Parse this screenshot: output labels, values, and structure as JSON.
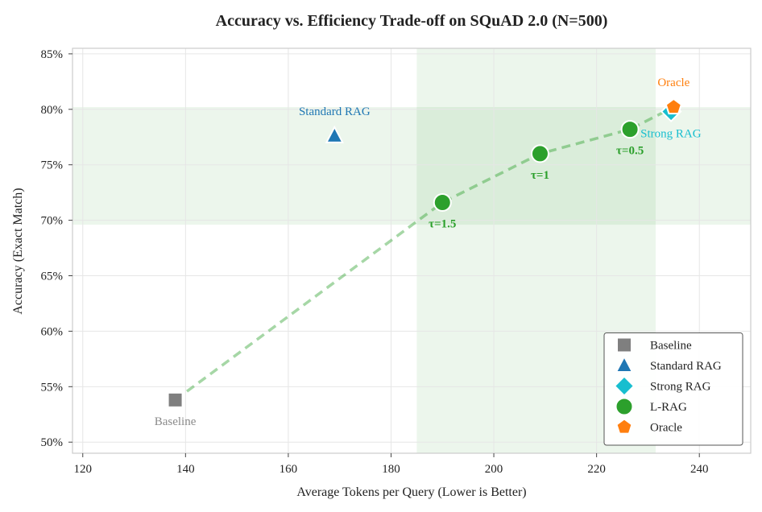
{
  "chart_data": {
    "type": "scatter",
    "title": "Accuracy vs. Efficiency Trade-off on SQuAD 2.0 (N=500)",
    "xlabel": "Average Tokens per Query (Lower is Better)",
    "ylabel": "Accuracy (Exact Match)",
    "xlim": [
      118,
      250
    ],
    "ylim": [
      49,
      85.5
    ],
    "xticks": [
      120,
      140,
      160,
      180,
      200,
      220,
      240
    ],
    "yticks": [
      50,
      55,
      60,
      65,
      70,
      75,
      80,
      85
    ],
    "ytick_suffix": "%",
    "grid": true,
    "shaded_regions": [
      {
        "axis": "x",
        "from": 185,
        "to": 231.5,
        "color": "#2ca02c"
      },
      {
        "axis": "y",
        "from": 69.6,
        "to": 80.2,
        "color": "#2ca02c"
      }
    ],
    "series": [
      {
        "name": "Baseline",
        "marker": "square",
        "color": "#7f7f7f",
        "points": [
          {
            "x": 138,
            "y": 53.8,
            "label": "Baseline",
            "label_pos": "below"
          }
        ]
      },
      {
        "name": "Standard RAG",
        "marker": "triangle",
        "color": "#1f77b4",
        "points": [
          {
            "x": 169,
            "y": 77.6,
            "label": "Standard RAG",
            "label_pos": "above"
          }
        ]
      },
      {
        "name": "Strong RAG",
        "marker": "diamond",
        "color": "#17becf",
        "points": [
          {
            "x": 234.5,
            "y": 79.8,
            "label": "Strong RAG",
            "label_pos": "below-right"
          }
        ]
      },
      {
        "name": "L-RAG",
        "marker": "circle",
        "color": "#2ca02c",
        "line": "dashed",
        "points": [
          {
            "x": 190,
            "y": 71.6,
            "label": "τ=1.5",
            "label_pos": "below"
          },
          {
            "x": 209,
            "y": 76.0,
            "label": "τ=1",
            "label_pos": "below"
          },
          {
            "x": 226.5,
            "y": 78.2,
            "label": "τ=0.5",
            "label_pos": "below"
          }
        ]
      },
      {
        "name": "Oracle",
        "marker": "pentagon",
        "color": "#ff7f0e",
        "points": [
          {
            "x": 235,
            "y": 80.2,
            "label": "Oracle",
            "label_pos": "above"
          }
        ]
      }
    ],
    "trend_line": {
      "color": "#2ca02c",
      "points": [
        {
          "x": 138,
          "y": 53.8
        },
        {
          "x": 190,
          "y": 71.6
        },
        {
          "x": 209,
          "y": 76.0
        },
        {
          "x": 226.5,
          "y": 78.2
        },
        {
          "x": 235,
          "y": 80.2
        }
      ]
    },
    "legend": {
      "position": "lower-right",
      "entries": [
        "Baseline",
        "Standard RAG",
        "Strong RAG",
        "L-RAG",
        "Oracle"
      ]
    }
  }
}
